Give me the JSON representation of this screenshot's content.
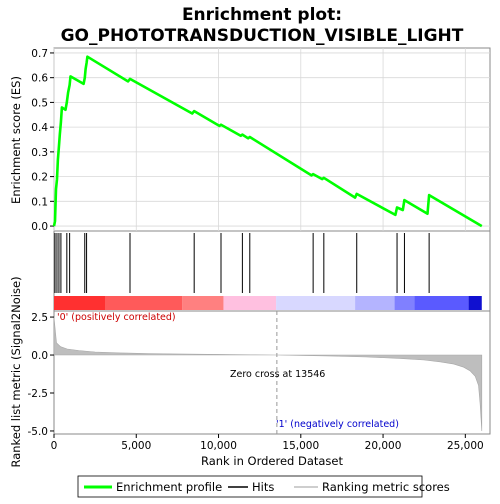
{
  "title_line1": "Enrichment plot:",
  "title_line2": "GO_PHOTOTRANSDUCTION_VISIBLE_LIGHT",
  "colors": {
    "profile": "#00ff00",
    "hit": "#000000",
    "metric_fill": "#bebebe",
    "zero_cross": "#999999",
    "pos_label": "#cc0000",
    "neg_label": "#0000cc"
  },
  "chart_data": [
    {
      "type": "line",
      "name": "enrichment-score-panel",
      "ylabel": "Enrichment score (ES)",
      "ylim": [
        -0.02,
        0.72
      ],
      "yticks": [
        0.0,
        0.1,
        0.2,
        0.3,
        0.4,
        0.5,
        0.6,
        0.7
      ],
      "ytick_labels": [
        "0.0",
        "0.1",
        "0.2",
        "0.3",
        "0.4",
        "0.5",
        "0.6",
        "0.7"
      ],
      "xlim": [
        0,
        26500
      ],
      "grid": true,
      "series": [
        {
          "x": [
            0,
            60,
            120,
            180,
            240,
            300,
            350,
            420,
            480,
            700,
            780,
            860,
            950,
            1000,
            1800,
            1870,
            1920,
            1980,
            2030,
            4500,
            4620,
            8400,
            8520,
            10050,
            10150,
            11350,
            11450,
            11800,
            11900,
            15650,
            15750,
            16300,
            16400,
            18300,
            18400,
            20750,
            20850,
            21200,
            21300,
            22700,
            22800,
            26000
          ],
          "y": [
            0.0,
            0.02,
            0.15,
            0.19,
            0.27,
            0.32,
            0.37,
            0.42,
            0.48,
            0.47,
            0.5,
            0.54,
            0.57,
            0.605,
            0.575,
            0.6,
            0.635,
            0.66,
            0.685,
            0.585,
            0.595,
            0.455,
            0.465,
            0.405,
            0.41,
            0.365,
            0.37,
            0.355,
            0.36,
            0.205,
            0.21,
            0.19,
            0.195,
            0.115,
            0.13,
            0.045,
            0.075,
            0.065,
            0.105,
            0.05,
            0.125,
            0.0
          ]
        }
      ]
    },
    {
      "type": "scatter",
      "name": "hits-panel",
      "hits": [
        60,
        180,
        300,
        420,
        780,
        950,
        1870,
        1980,
        4620,
        8520,
        10150,
        11450,
        11900,
        15750,
        16400,
        18400,
        20850,
        21300,
        22800
      ]
    },
    {
      "type": "area",
      "name": "ranked-metric-panel",
      "ylabel": "Ranked list metric (Signal2Noise)",
      "xlabel": "Rank in Ordered Dataset",
      "xlim": [
        0,
        26500
      ],
      "xticks": [
        0,
        5000,
        10000,
        15000,
        20000,
        25000
      ],
      "xtick_labels": [
        "0",
        "5,000",
        "10,000",
        "15,000",
        "20,000",
        "25,000"
      ],
      "ylim": [
        -5.2,
        2.9
      ],
      "yticks": [
        2.5,
        0.0,
        -2.5,
        -5.0
      ],
      "ytick_labels": [
        "2.5",
        "0.0",
        "-2.5",
        "-5.0"
      ],
      "x": [
        0,
        150,
        400,
        800,
        1500,
        2500,
        4000,
        6000,
        8000,
        10000,
        12000,
        13546,
        15000,
        17000,
        19000,
        21000,
        22500,
        23500,
        24300,
        24900,
        25300,
        25600,
        25800,
        25900,
        26000
      ],
      "y": [
        2.5,
        0.8,
        0.55,
        0.4,
        0.3,
        0.2,
        0.14,
        0.09,
        0.06,
        0.04,
        0.015,
        0.0,
        -0.03,
        -0.07,
        -0.13,
        -0.22,
        -0.33,
        -0.45,
        -0.6,
        -0.8,
        -1.05,
        -1.4,
        -2.0,
        -3.2,
        -5.0
      ],
      "zero_cross_rank": 13546,
      "zero_cross_text": "Zero cross at 13546",
      "pos_text": "'0' (positively correlated)",
      "neg_text": "'1' (negatively correlated)"
    }
  ],
  "heatmap_bar": {
    "segments": [
      {
        "start": 0,
        "end": 3100,
        "color": "#ff3030"
      },
      {
        "start": 3100,
        "end": 7800,
        "color": "#ff5a5a"
      },
      {
        "start": 7800,
        "end": 10300,
        "color": "#ff8080"
      },
      {
        "start": 10300,
        "end": 13500,
        "color": "#ffc0e0"
      },
      {
        "start": 13500,
        "end": 18300,
        "color": "#d8d8ff"
      },
      {
        "start": 18300,
        "end": 20700,
        "color": "#b4b4ff"
      },
      {
        "start": 20700,
        "end": 21900,
        "color": "#8080ff"
      },
      {
        "start": 21900,
        "end": 25200,
        "color": "#5a5aff"
      },
      {
        "start": 25200,
        "end": 26000,
        "color": "#1010d0"
      }
    ]
  },
  "legend": {
    "items": [
      {
        "label": "Enrichment profile",
        "color": "#00ff00",
        "kind": "line-thick"
      },
      {
        "label": "Hits",
        "color": "#000000",
        "kind": "line"
      },
      {
        "label": "Ranking metric scores",
        "color": "#bebebe",
        "kind": "line"
      }
    ]
  }
}
